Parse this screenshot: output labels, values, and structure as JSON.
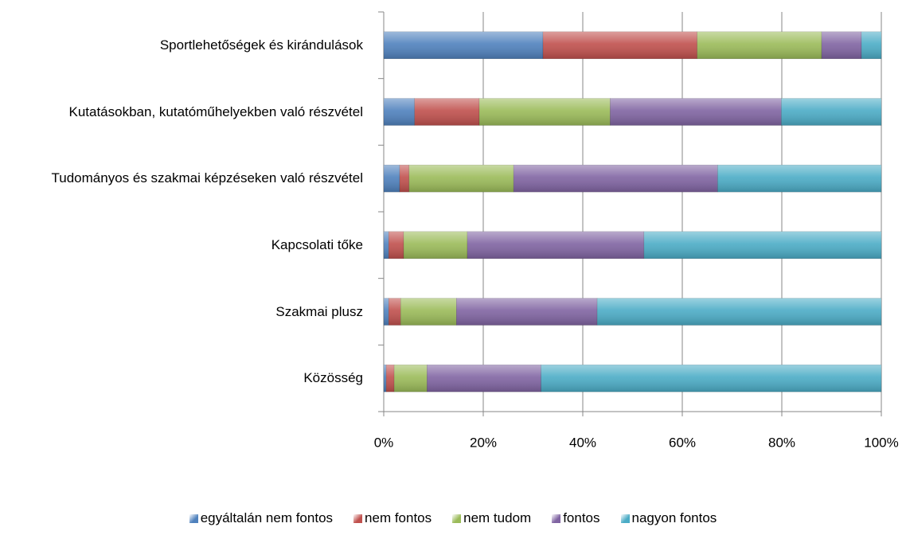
{
  "chart_data": {
    "type": "stacked_barh",
    "categories": [
      "Sportlehetőségek és kirándulások",
      "Kutatásokban, kutatóműhelyekben való részvétel",
      "Tudományos és szakmai képzéseken való részvétel",
      "Kapcsolati tőke",
      "Szakmai plusz",
      "Közösség"
    ],
    "series": [
      {
        "name": "egyáltalán nem fontos",
        "color": "#4f81bd",
        "values": [
          32,
          6.2,
          3.2,
          1,
          1,
          0.5
        ]
      },
      {
        "name": "nem fontos",
        "color": "#c0504d",
        "values": [
          31,
          13,
          1.9,
          3,
          2.4,
          1.6
        ]
      },
      {
        "name": "nem tudom",
        "color": "#9bbb59",
        "values": [
          25,
          26.3,
          21,
          12.8,
          11.2,
          6.6
        ]
      },
      {
        "name": "fontos",
        "color": "#8064a2",
        "values": [
          8,
          34.4,
          41,
          35.5,
          28.3,
          22.9
        ]
      },
      {
        "name": "nagyon fontos",
        "color": "#4bacc6",
        "values": [
          4,
          20.1,
          32.9,
          47.7,
          57.1,
          68.4
        ]
      }
    ],
    "xlim": [
      0,
      100
    ],
    "xticks": [
      {
        "value": 0,
        "label": "0%"
      },
      {
        "value": 20,
        "label": "20%"
      },
      {
        "value": 40,
        "label": "40%"
      },
      {
        "value": 60,
        "label": "60%"
      },
      {
        "value": 80,
        "label": "80%"
      },
      {
        "value": 100,
        "label": "100%"
      }
    ],
    "grid": true,
    "legend": "bottom"
  }
}
